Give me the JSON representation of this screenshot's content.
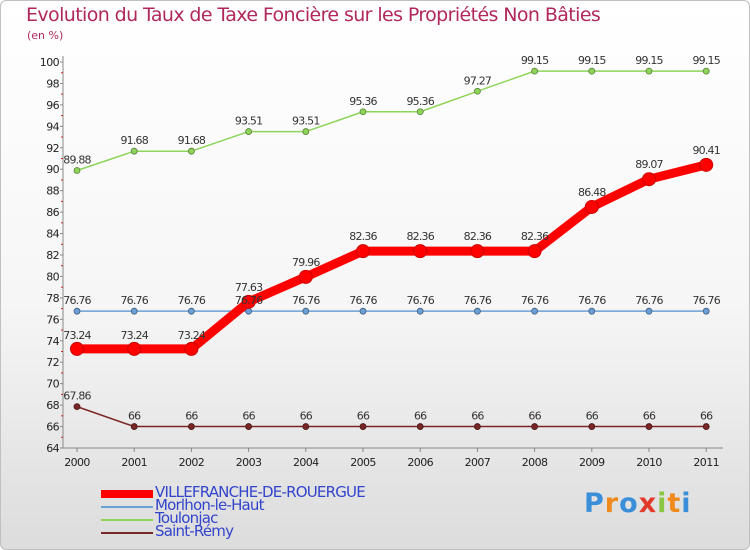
{
  "title": "Evolution du Taux de Taxe Foncière sur les Propriétés Non Bâties",
  "unit_label": "(en %)",
  "logo_text": "Proxiti",
  "chart_data": {
    "type": "line",
    "x": [
      "2000",
      "2001",
      "2002",
      "2003",
      "2004",
      "2005",
      "2006",
      "2007",
      "2008",
      "2009",
      "2010",
      "2011"
    ],
    "ylim": [
      64,
      100
    ],
    "y_ticks": [
      64,
      66,
      68,
      70,
      72,
      74,
      76,
      78,
      80,
      82,
      84,
      86,
      88,
      90,
      92,
      94,
      96,
      98,
      100
    ],
    "grid": false,
    "legend_placement": "bottom-left",
    "series": [
      {
        "name": "VILLEFRANCHE-DE-ROUERGUE",
        "color": "#ff0000",
        "values": [
          73.24,
          73.24,
          73.24,
          77.63,
          79.96,
          82.36,
          82.36,
          82.36,
          82.36,
          86.48,
          89.07,
          90.41
        ],
        "labels": [
          "73.24",
          "73.24",
          "73.24",
          "77.63",
          "79.96",
          "82.36",
          "82.36",
          "82.36",
          "82.36",
          "86.48",
          "89.07",
          "90.41"
        ]
      },
      {
        "name": "Morlhon-le-Haut",
        "color": "#6b9fd6",
        "values": [
          76.76,
          76.76,
          76.76,
          76.76,
          76.76,
          76.76,
          76.76,
          76.76,
          76.76,
          76.76,
          76.76,
          76.76
        ],
        "labels": [
          "76.76",
          "76.76",
          "76.76",
          "76.76",
          "76.76",
          "76.76",
          "76.76",
          "76.76",
          "76.76",
          "76.76",
          "76.76",
          "76.76"
        ]
      },
      {
        "name": "Toulonjac",
        "color": "#8fd45a",
        "values": [
          89.88,
          91.68,
          91.68,
          93.51,
          93.51,
          95.36,
          95.36,
          97.27,
          99.15,
          99.15,
          99.15,
          99.15
        ],
        "labels": [
          "89.88",
          "91.68",
          "91.68",
          "93.51",
          "93.51",
          "95.36",
          "95.36",
          "97.27",
          "99.15",
          "99.15",
          "99.15",
          "99.15"
        ]
      },
      {
        "name": "Saint-Rémy",
        "color": "#7a2626",
        "values": [
          67.86,
          66,
          66,
          66,
          66,
          66,
          66,
          66,
          66,
          66,
          66,
          66
        ],
        "labels": [
          "67.86",
          "66",
          "66",
          "66",
          "66",
          "66",
          "66",
          "66",
          "66",
          "66",
          "66",
          "66"
        ]
      }
    ]
  }
}
